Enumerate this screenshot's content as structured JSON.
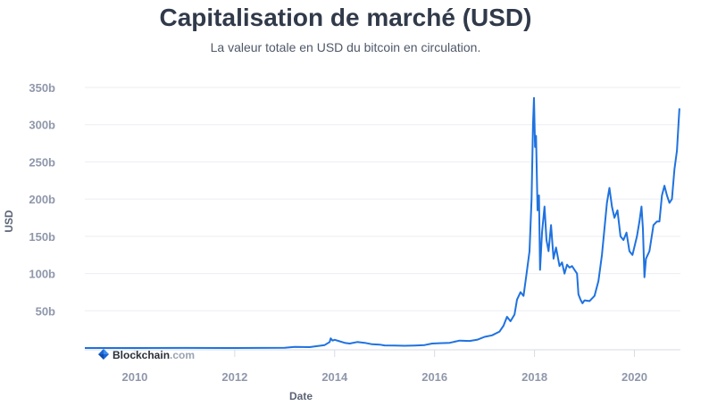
{
  "chart_data": {
    "type": "line",
    "title": "Capitalisation de marché (USD)",
    "subtitle": "La valeur totale en USD du bitcoin en circulation.",
    "xlabel": "Date",
    "ylabel": "USD",
    "x_ticks": [
      "2010",
      "2012",
      "2014",
      "2016",
      "2018",
      "2020"
    ],
    "y_ticks": [
      {
        "value": 50,
        "label": "50b"
      },
      {
        "value": 100,
        "label": "100b"
      },
      {
        "value": 150,
        "label": "150b"
      },
      {
        "value": 200,
        "label": "200b"
      },
      {
        "value": 250,
        "label": "250b"
      },
      {
        "value": 300,
        "label": "300b"
      },
      {
        "value": 350,
        "label": "350b"
      }
    ],
    "xlim": [
      2009.0,
      2020.92
    ],
    "ylim": [
      0,
      350
    ],
    "grid": true,
    "line_color": "#1f72e0",
    "series": [
      {
        "values_unit": "billions USD",
        "points": [
          [
            2009.0,
            0
          ],
          [
            2010.0,
            0
          ],
          [
            2011.0,
            0.1
          ],
          [
            2012.0,
            0.05
          ],
          [
            2013.0,
            0.3
          ],
          [
            2013.2,
            1.5
          ],
          [
            2013.5,
            1.2
          ],
          [
            2013.8,
            4
          ],
          [
            2013.9,
            8
          ],
          [
            2013.92,
            13
          ],
          [
            2013.96,
            10
          ],
          [
            2014.0,
            11
          ],
          [
            2014.1,
            9
          ],
          [
            2014.2,
            7
          ],
          [
            2014.3,
            6
          ],
          [
            2014.45,
            8
          ],
          [
            2014.6,
            7
          ],
          [
            2014.75,
            5
          ],
          [
            2014.9,
            4.5
          ],
          [
            2015.0,
            3.5
          ],
          [
            2015.2,
            3.2
          ],
          [
            2015.4,
            3
          ],
          [
            2015.6,
            3.3
          ],
          [
            2015.8,
            4
          ],
          [
            2015.95,
            6
          ],
          [
            2016.1,
            6.5
          ],
          [
            2016.3,
            7
          ],
          [
            2016.5,
            10
          ],
          [
            2016.7,
            9.5
          ],
          [
            2016.85,
            11
          ],
          [
            2017.0,
            15
          ],
          [
            2017.15,
            17
          ],
          [
            2017.3,
            22
          ],
          [
            2017.38,
            30
          ],
          [
            2017.45,
            42
          ],
          [
            2017.52,
            36
          ],
          [
            2017.6,
            45
          ],
          [
            2017.65,
            65
          ],
          [
            2017.72,
            75
          ],
          [
            2017.78,
            70
          ],
          [
            2017.84,
            100
          ],
          [
            2017.9,
            130
          ],
          [
            2017.94,
            200
          ],
          [
            2017.97,
            300
          ],
          [
            2017.99,
            336
          ],
          [
            2018.01,
            270
          ],
          [
            2018.03,
            285
          ],
          [
            2018.06,
            185
          ],
          [
            2018.09,
            205
          ],
          [
            2018.11,
            105
          ],
          [
            2018.15,
            155
          ],
          [
            2018.2,
            190
          ],
          [
            2018.24,
            145
          ],
          [
            2018.28,
            130
          ],
          [
            2018.33,
            165
          ],
          [
            2018.38,
            120
          ],
          [
            2018.43,
            135
          ],
          [
            2018.5,
            110
          ],
          [
            2018.55,
            115
          ],
          [
            2018.6,
            100
          ],
          [
            2018.65,
            112
          ],
          [
            2018.7,
            108
          ],
          [
            2018.75,
            110
          ],
          [
            2018.8,
            105
          ],
          [
            2018.85,
            100
          ],
          [
            2018.88,
            72
          ],
          [
            2018.92,
            65
          ],
          [
            2018.96,
            60
          ],
          [
            2019.0,
            64
          ],
          [
            2019.1,
            63
          ],
          [
            2019.2,
            70
          ],
          [
            2019.28,
            90
          ],
          [
            2019.35,
            125
          ],
          [
            2019.4,
            160
          ],
          [
            2019.45,
            195
          ],
          [
            2019.5,
            215
          ],
          [
            2019.55,
            190
          ],
          [
            2019.6,
            175
          ],
          [
            2019.66,
            185
          ],
          [
            2019.72,
            150
          ],
          [
            2019.78,
            145
          ],
          [
            2019.84,
            155
          ],
          [
            2019.9,
            130
          ],
          [
            2019.96,
            125
          ],
          [
            2020.05,
            150
          ],
          [
            2020.1,
            170
          ],
          [
            2020.14,
            190
          ],
          [
            2020.17,
            160
          ],
          [
            2020.2,
            95
          ],
          [
            2020.23,
            120
          ],
          [
            2020.3,
            130
          ],
          [
            2020.38,
            165
          ],
          [
            2020.45,
            170
          ],
          [
            2020.5,
            170
          ],
          [
            2020.55,
            205
          ],
          [
            2020.6,
            218
          ],
          [
            2020.65,
            205
          ],
          [
            2020.7,
            195
          ],
          [
            2020.75,
            200
          ],
          [
            2020.8,
            240
          ],
          [
            2020.85,
            265
          ],
          [
            2020.88,
            300
          ],
          [
            2020.9,
            322
          ]
        ]
      }
    ]
  },
  "watermark": {
    "brand": "Blockchain",
    "suffix": ".com"
  }
}
